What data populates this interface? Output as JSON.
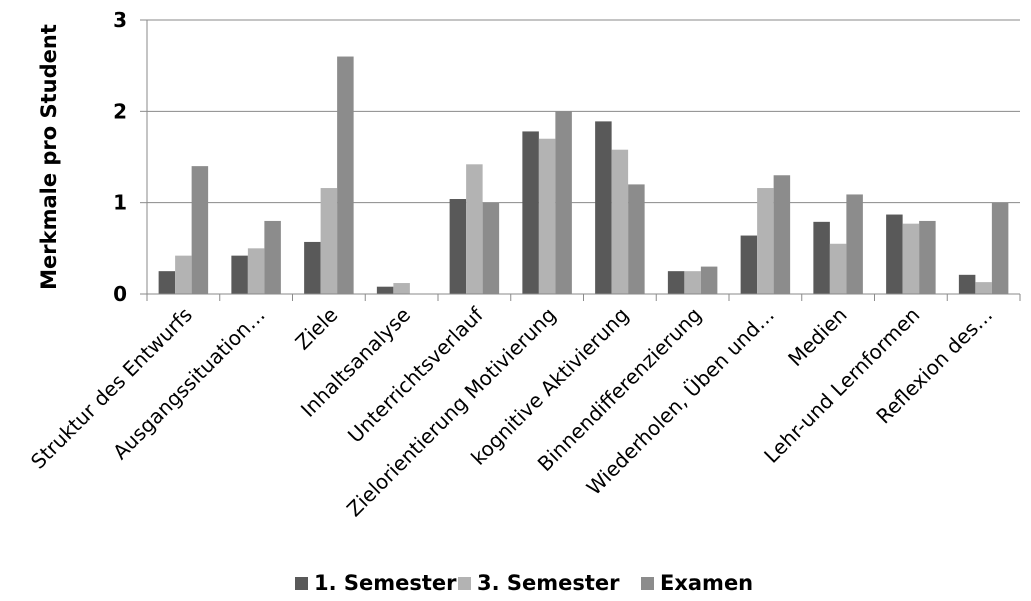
{
  "chart_data": {
    "type": "bar",
    "title": "",
    "xlabel": "",
    "ylabel": "Merkmale pro Student",
    "ylim": [
      0,
      3
    ],
    "yticks": [
      "0",
      "1",
      "2",
      "3"
    ],
    "grid": "horizontal",
    "legend_position": "bottom",
    "categories": [
      "Struktur des Entwurfs",
      "Ausgangssituation…",
      "Ziele",
      "Inhaltsanalyse",
      "Unterrichtsverlauf",
      "Zielorientierung Motivierung",
      "kognitive Aktivierung",
      "Binnendifferenzierung",
      "Wiederholen, Üben und…",
      "Medien",
      "Lehr-und Lernformen",
      "Reflexion des…"
    ],
    "series": [
      {
        "name": "1. Semester",
        "color": "#595959",
        "values": [
          0.25,
          0.42,
          0.57,
          0.08,
          1.04,
          1.78,
          1.89,
          0.25,
          0.64,
          0.79,
          0.87,
          0.21
        ]
      },
      {
        "name": "3. Semester",
        "color": "#b3b3b3",
        "values": [
          0.42,
          0.5,
          1.16,
          0.12,
          1.42,
          1.7,
          1.58,
          0.25,
          1.16,
          0.55,
          0.77,
          0.13
        ]
      },
      {
        "name": "Examen",
        "color": "#8c8c8c",
        "values": [
          1.4,
          0.8,
          2.6,
          0,
          1.0,
          2.0,
          1.2,
          0.3,
          1.3,
          1.09,
          0.8,
          1.0
        ]
      }
    ]
  }
}
